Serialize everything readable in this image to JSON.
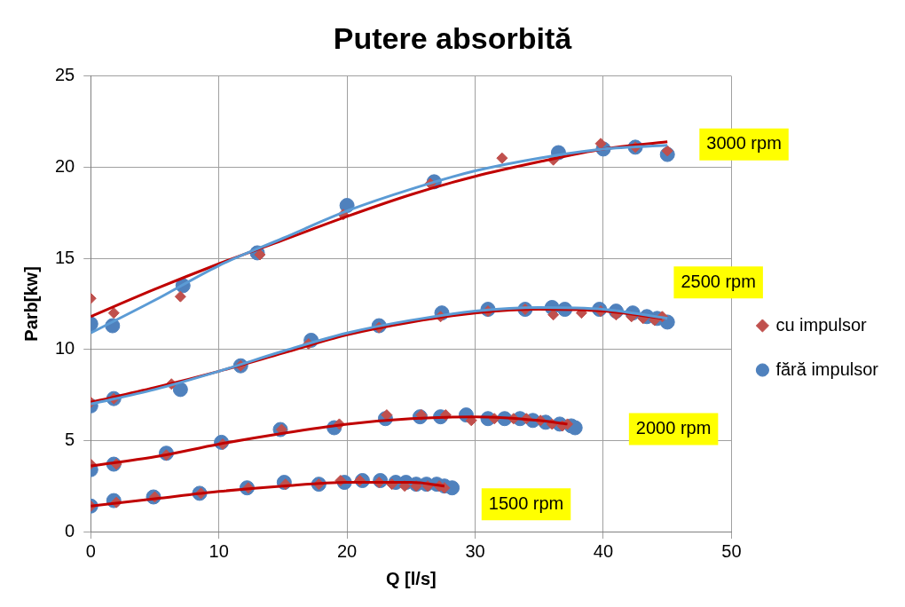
{
  "chart_data": {
    "type": "scatter",
    "title": "Putere absorbită",
    "xlabel": "Q [l/s]",
    "ylabel": "Parb[kw]",
    "xlim": [
      0,
      50
    ],
    "xticks": [
      0,
      10,
      20,
      30,
      40,
      50
    ],
    "ylim": [
      0,
      25
    ],
    "yticks": [
      0,
      5,
      10,
      15,
      20,
      25
    ],
    "grid": true,
    "legend": "right",
    "series": [
      {
        "name": "fără impulsor",
        "marker": "circle",
        "color": "#4f81bd",
        "x": [
          0,
          1.7,
          7.2,
          13,
          20,
          26.8,
          36.5,
          40,
          42.5,
          45,
          0,
          1.8,
          7,
          11.7,
          17.2,
          22.5,
          27.4,
          31,
          33.9,
          36,
          37,
          39.7,
          41,
          42.3,
          43.4,
          44.2,
          45,
          0,
          1.8,
          5.9,
          10.2,
          14.8,
          19,
          23,
          25.7,
          27.3,
          29.3,
          31,
          32.3,
          33.5,
          34.5,
          35.5,
          36.6,
          37.5,
          37.8,
          0,
          1.8,
          4.9,
          8.5,
          12.2,
          15.1,
          17.8,
          19.8,
          21.2,
          22.6,
          23.8,
          24.6,
          25.4,
          26.2,
          27,
          27.6,
          28.2
        ],
        "values": [
          11.4,
          11.3,
          13.5,
          15.3,
          17.9,
          19.2,
          20.8,
          21,
          21.1,
          20.7,
          6.9,
          7.3,
          7.8,
          9.1,
          10.5,
          11.3,
          12,
          12.2,
          12.2,
          12.3,
          12.2,
          12.2,
          12.1,
          12,
          11.8,
          11.7,
          11.5,
          3.4,
          3.7,
          4.3,
          4.9,
          5.6,
          5.7,
          6.2,
          6.3,
          6.3,
          6.4,
          6.2,
          6.2,
          6.2,
          6.1,
          6,
          5.9,
          5.8,
          5.7,
          1.4,
          1.7,
          1.9,
          2.1,
          2.4,
          2.7,
          2.6,
          2.7,
          2.8,
          2.8,
          2.7,
          2.7,
          2.6,
          2.6,
          2.6,
          2.5,
          2.4
        ]
      },
      {
        "name": "cu impulsor",
        "marker": "diamond",
        "color": "#c0504d",
        "x": [
          0,
          1.8,
          7,
          13.2,
          19.7,
          26.5,
          32.1,
          36.1,
          39.8,
          42.5,
          45,
          0,
          1.8,
          6.3,
          11.7,
          17,
          22.5,
          27.3,
          31,
          33.9,
          36.1,
          38.3,
          39.8,
          41,
          42.2,
          43.1,
          44,
          44.6,
          0,
          2,
          5.9,
          10.3,
          14.9,
          19.4,
          23.1,
          25.8,
          27.7,
          29.7,
          31.5,
          33,
          34,
          35.1,
          36,
          36.8,
          37.2,
          0,
          2,
          5,
          8.6,
          12.3,
          15.2,
          17.8,
          19.5,
          21,
          22.5,
          23.5,
          24.5,
          25.4,
          26.3,
          27.2,
          27.6
        ],
        "values": [
          12.8,
          12,
          12.9,
          15.2,
          17.4,
          19.1,
          20.5,
          20.4,
          21.3,
          21.1,
          20.9,
          7.1,
          7.3,
          8.1,
          9.1,
          10.3,
          11.2,
          11.8,
          12.1,
          12.2,
          11.9,
          12,
          12.1,
          11.9,
          11.8,
          11.7,
          11.6,
          11.8,
          3.7,
          3.7,
          4.2,
          4.8,
          5.6,
          5.9,
          6.4,
          6.4,
          6.4,
          6.1,
          6.2,
          6.2,
          6.2,
          6.1,
          5.9,
          5.8,
          5.9,
          1.4,
          1.6,
          1.9,
          2.1,
          2.4,
          2.6,
          2.6,
          2.8,
          2.8,
          2.7,
          2.6,
          2.5,
          2.5,
          2.5,
          2.5,
          2.4
        ]
      },
      {
        "type": "line",
        "marker": "none",
        "color": "#5b9bd5",
        "x": [
          0,
          5,
          10,
          15,
          20,
          25,
          30,
          35,
          40,
          45
        ],
        "values": [
          10.9,
          12.7,
          14.6,
          16.1,
          17.6,
          18.8,
          19.8,
          20.5,
          21,
          21.2
        ]
      },
      {
        "type": "line",
        "marker": "none",
        "color": "#5b9bd5",
        "x": [
          0,
          5,
          10,
          15,
          20,
          25,
          30,
          35,
          40,
          45
        ],
        "values": [
          7,
          7.8,
          8.8,
          9.9,
          10.9,
          11.6,
          12.1,
          12.3,
          12.2,
          11.7
        ]
      },
      {
        "type": "line",
        "marker": "none",
        "color": "#c00000",
        "x": [
          0,
          5,
          10,
          15,
          20,
          25,
          30,
          35,
          40,
          45
        ],
        "values": [
          11.8,
          13.3,
          14.7,
          16,
          17.3,
          18.5,
          19.5,
          20.3,
          21,
          21.4
        ]
      },
      {
        "type": "line",
        "marker": "none",
        "color": "#c00000",
        "x": [
          0,
          5,
          10,
          15,
          20,
          25,
          30,
          35,
          40,
          44.6
        ],
        "values": [
          7.1,
          7.9,
          8.8,
          9.8,
          10.8,
          11.5,
          12,
          12.2,
          12.1,
          11.7
        ]
      },
      {
        "type": "line",
        "marker": "none",
        "color": "#c00000",
        "x": [
          0,
          5,
          10,
          15,
          20,
          25,
          30,
          35,
          37.2
        ],
        "values": [
          3.6,
          4.1,
          4.8,
          5.4,
          5.9,
          6.2,
          6.3,
          6.1,
          5.9
        ]
      },
      {
        "type": "line",
        "marker": "none",
        "color": "#c00000",
        "x": [
          0,
          5,
          10,
          15,
          20,
          25,
          27.6
        ],
        "values": [
          1.4,
          1.8,
          2.2,
          2.5,
          2.7,
          2.7,
          2.5
        ]
      }
    ],
    "annotations": [
      "3000 rpm",
      "2500 rpm",
      "2000 rpm",
      "1500 rpm"
    ]
  }
}
